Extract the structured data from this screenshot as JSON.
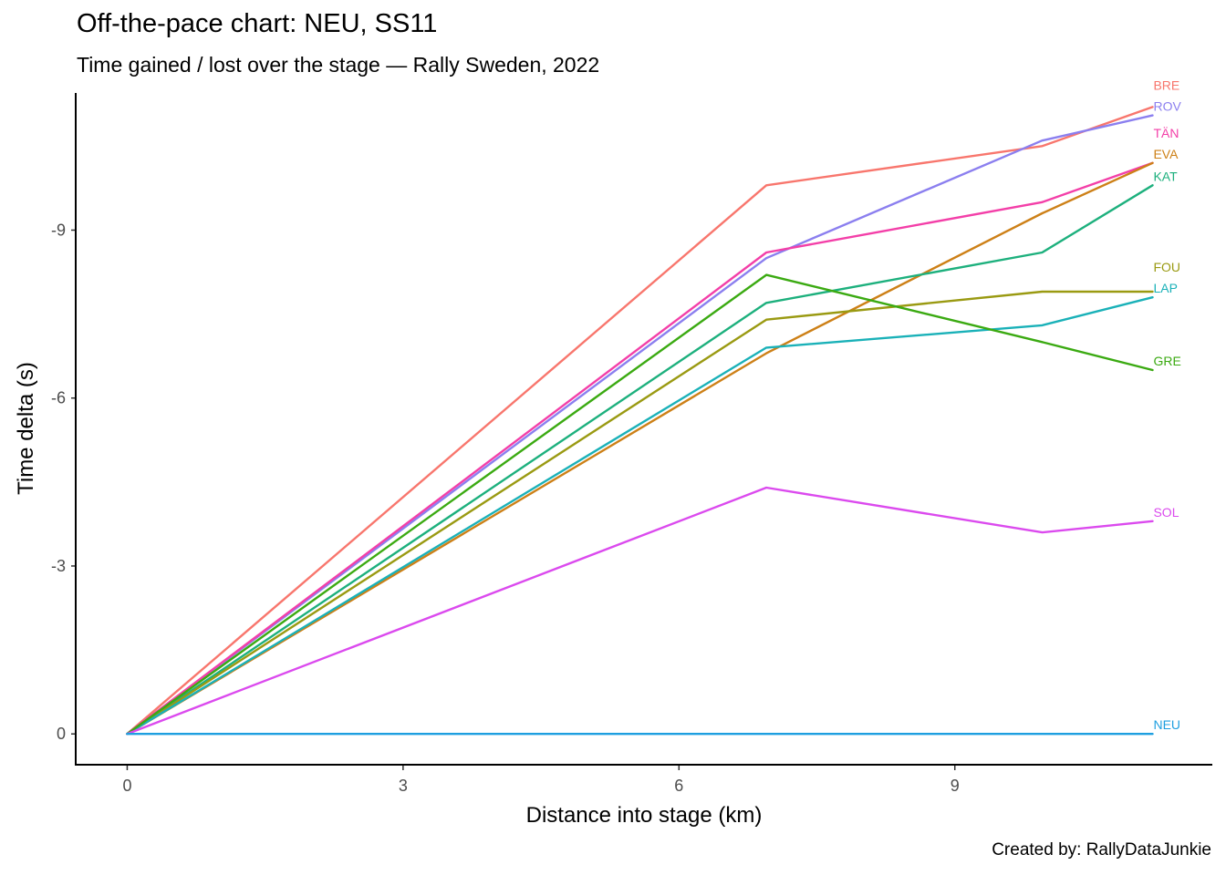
{
  "chart_data": {
    "type": "line",
    "title": "Off-the-pace chart: NEU, SS11",
    "subtitle": "Time gained / lost over the stage — Rally Sweden, 2022",
    "caption": "Created by: RallyDataJunkie",
    "xlabel": "Distance into stage (km)",
    "ylabel": "Time delta (s)",
    "xlim": [
      -0.55,
      11.8
    ],
    "ylim": [
      0.55,
      -11.45
    ],
    "y_reversed": true,
    "xticks": [
      0,
      3,
      6,
      9
    ],
    "xtick_labels": [
      "0",
      "3",
      "6",
      "9"
    ],
    "yticks": [
      0,
      -3,
      -6,
      -9
    ],
    "ytick_labels": [
      "0",
      "-3",
      "-6",
      "-9"
    ],
    "grid": false,
    "legend": "direct labels at line ends",
    "x": [
      0,
      6.95,
      9.95,
      11.15
    ],
    "series": [
      {
        "name": "BRE",
        "color": "#F8766D",
        "values": [
          0,
          -9.8,
          -10.5,
          -11.2
        ]
      },
      {
        "name": "ROV",
        "color": "#8B7FEF",
        "values": [
          0,
          -8.5,
          -10.6,
          -11.05
        ]
      },
      {
        "name": "TÄN",
        "color": "#F33FA8",
        "values": [
          0,
          -8.6,
          -9.5,
          -10.2
        ]
      },
      {
        "name": "EVA",
        "color": "#CD8017",
        "values": [
          0,
          -6.8,
          -9.3,
          -10.2
        ]
      },
      {
        "name": "KAT",
        "color": "#1DB07D",
        "values": [
          0,
          -7.7,
          -8.6,
          -9.8
        ]
      },
      {
        "name": "FOU",
        "color": "#9A9A12",
        "values": [
          0,
          -7.4,
          -7.9,
          -7.9
        ]
      },
      {
        "name": "LAP",
        "color": "#1AB1B8",
        "values": [
          0,
          -6.9,
          -7.3,
          -7.8
        ]
      },
      {
        "name": "GRE",
        "color": "#3BAA12",
        "values": [
          0,
          -8.2,
          -7.0,
          -6.5
        ]
      },
      {
        "name": "SOL",
        "color": "#DB4AEE",
        "values": [
          0,
          -4.4,
          -3.6,
          -3.8
        ]
      },
      {
        "name": "NEU",
        "color": "#1E9FE0",
        "values": [
          0,
          0,
          0,
          0
        ]
      }
    ]
  }
}
